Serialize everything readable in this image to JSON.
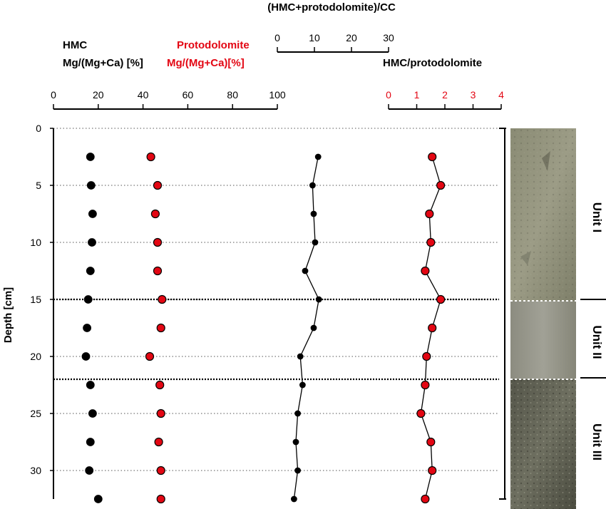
{
  "chart_data": {
    "type": "scatter",
    "shared_y": {
      "label": "Depth [cm]",
      "ticks": [
        0,
        5,
        10,
        15,
        20,
        25,
        30
      ],
      "range": [
        0,
        32.5
      ],
      "inverted": true
    },
    "unit_boundaries": [
      15,
      22
    ],
    "units": [
      {
        "name": "Unit I",
        "from": 0,
        "to": 15
      },
      {
        "name": "Unit II",
        "from": 15,
        "to": 22
      },
      {
        "name": "Unit III",
        "from": 22,
        "to": 32.5
      }
    ],
    "panels": [
      {
        "id": "mg",
        "title_line1_black": "HMC",
        "title_line1_red": "Protodolomite",
        "title_line2_black": "Mg/(Mg+Ca) [%]",
        "title_line2_red": "Mg/(Mg+Ca)[%]",
        "xlim": [
          0,
          100
        ],
        "xticks": [
          "0",
          "20",
          "40",
          "60",
          "80",
          "100"
        ],
        "tick_color": "#000000",
        "series": [
          {
            "name": "HMC",
            "color": "#000000",
            "connected": false,
            "points": [
              [
                16.5,
                2.5
              ],
              [
                16.8,
                5
              ],
              [
                17.5,
                7.5
              ],
              [
                17.2,
                10
              ],
              [
                16.5,
                12.5
              ],
              [
                15.5,
                15
              ],
              [
                15,
                17.5
              ],
              [
                14.5,
                20
              ],
              [
                16.5,
                22.5
              ],
              [
                17.5,
                25
              ],
              [
                16.5,
                27.5
              ],
              [
                16,
                30
              ],
              [
                20,
                32.5
              ]
            ]
          },
          {
            "name": "Protodolomite",
            "color": "#e30613",
            "connected": false,
            "points": [
              [
                43.5,
                2.5
              ],
              [
                46.5,
                5
              ],
              [
                45.5,
                7.5
              ],
              [
                46.5,
                10
              ],
              [
                46.5,
                12.5
              ],
              [
                48.5,
                15
              ],
              [
                48,
                17.5
              ],
              [
                43,
                20
              ],
              [
                47.5,
                22.5
              ],
              [
                48,
                25
              ],
              [
                47,
                27.5
              ],
              [
                48,
                30
              ],
              [
                48,
                32.5
              ]
            ]
          }
        ]
      },
      {
        "id": "ratio_cc",
        "title": "(HMC+protodolomite)/CC",
        "xlim": [
          0,
          30
        ],
        "xticks": [
          "0",
          "10",
          "20",
          "30"
        ],
        "tick_color": "#000000",
        "series": [
          {
            "color": "#000000",
            "connected": true,
            "points": [
              [
                11,
                2.5
              ],
              [
                9.5,
                5
              ],
              [
                9.8,
                7.5
              ],
              [
                10.2,
                10
              ],
              [
                7.5,
                12.5
              ],
              [
                11.2,
                15
              ],
              [
                9.8,
                17.5
              ],
              [
                6.2,
                20
              ],
              [
                6.8,
                22.5
              ],
              [
                5.5,
                25
              ],
              [
                5,
                27.5
              ],
              [
                5.5,
                30
              ],
              [
                4.5,
                32.5
              ]
            ]
          }
        ]
      },
      {
        "id": "hmc_proto",
        "title": "HMC/protodolomite",
        "xlim": [
          0,
          4
        ],
        "xticks": [
          "0",
          "1",
          "2",
          "3",
          "4"
        ],
        "tick_color": "#e30613",
        "series": [
          {
            "color": "#e30613",
            "connected": true,
            "points": [
              [
                1.55,
                2.5
              ],
              [
                1.85,
                5
              ],
              [
                1.45,
                7.5
              ],
              [
                1.5,
                10
              ],
              [
                1.3,
                12.5
              ],
              [
                1.85,
                15
              ],
              [
                1.55,
                17.5
              ],
              [
                1.35,
                20
              ],
              [
                1.3,
                22.5
              ],
              [
                1.15,
                25
              ],
              [
                1.5,
                27.5
              ],
              [
                1.55,
                30
              ],
              [
                1.3,
                32.5
              ]
            ]
          }
        ]
      }
    ]
  }
}
